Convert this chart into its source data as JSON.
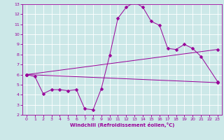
{
  "xlabel": "Windchill (Refroidissement éolien,°C)",
  "bg_color": "#cce8e8",
  "grid_color": "#ffffff",
  "line_color": "#990099",
  "xlim": [
    -0.5,
    23.5
  ],
  "ylim": [
    2,
    13
  ],
  "xticks": [
    0,
    1,
    2,
    3,
    4,
    5,
    6,
    7,
    8,
    9,
    10,
    11,
    12,
    13,
    14,
    15,
    16,
    17,
    18,
    19,
    20,
    21,
    22,
    23
  ],
  "yticks": [
    2,
    3,
    4,
    5,
    6,
    7,
    8,
    9,
    10,
    11,
    12,
    13
  ],
  "line1_x": [
    0,
    1,
    2,
    3,
    4,
    5,
    6,
    7,
    8,
    9,
    10,
    11,
    12,
    13,
    14,
    15,
    16,
    17,
    18,
    19,
    20,
    21,
    23
  ],
  "line1_y": [
    6.0,
    5.8,
    4.1,
    4.5,
    4.5,
    4.4,
    4.5,
    2.6,
    2.5,
    4.6,
    7.9,
    11.6,
    12.7,
    13.2,
    12.7,
    11.3,
    10.9,
    8.6,
    8.5,
    9.0,
    8.6,
    7.8,
    5.3
  ],
  "line2_x": [
    0,
    23
  ],
  "line2_y": [
    6.0,
    8.5
  ],
  "line3_x": [
    0,
    23
  ],
  "line3_y": [
    6.0,
    5.2
  ],
  "markersize": 2.5
}
